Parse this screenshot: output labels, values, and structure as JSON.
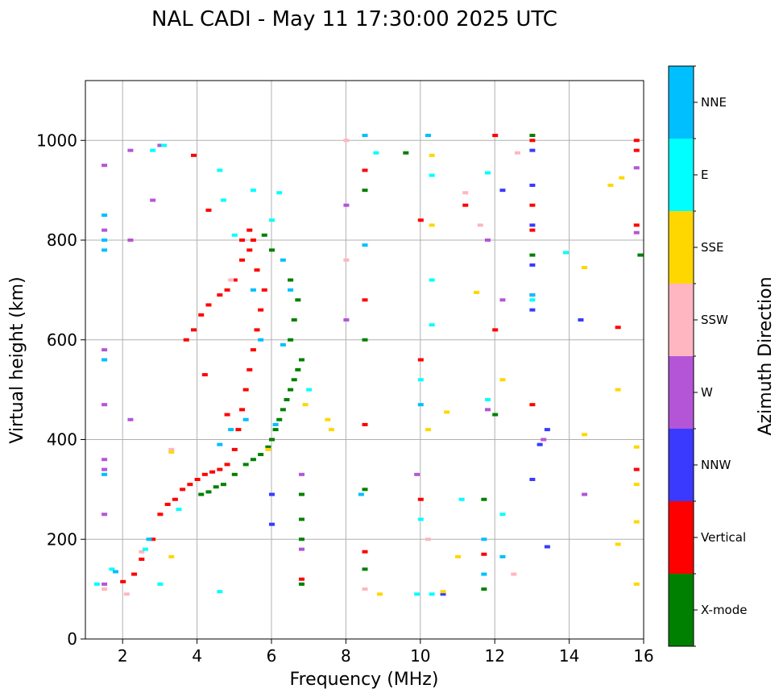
{
  "chart_data": {
    "type": "scatter",
    "title": "NAL CADI - May 11 17:30:00 2025 UTC",
    "xlabel": "Frequency (MHz)",
    "ylabel": "Virtual height (km)",
    "xlim": [
      1.0,
      16.0
    ],
    "ylim": [
      0,
      1120
    ],
    "xticks": [
      2,
      4,
      6,
      8,
      10,
      12,
      14,
      16
    ],
    "yticks": [
      0,
      200,
      400,
      600,
      800,
      1000
    ],
    "grid": true,
    "colorbar": {
      "label": "Azimuth Direction",
      "categories": [
        "X-mode",
        "Vertical",
        "NNW",
        "W",
        "SSW",
        "SSE",
        "E",
        "NNE"
      ],
      "colors": {
        "X-mode": "#008000",
        "Vertical": "#ff0000",
        "NNW": "#3a3aff",
        "W": "#b455d8",
        "SSW": "#ffb6c1",
        "SSE": "#ffd700",
        "E": "#00ffff",
        "NNE": "#00bfff"
      }
    },
    "series": [
      {
        "name": "X-mode",
        "points": [
          [
            4.1,
            290
          ],
          [
            4.3,
            295
          ],
          [
            4.5,
            305
          ],
          [
            4.7,
            310
          ],
          [
            5.0,
            330
          ],
          [
            5.3,
            350
          ],
          [
            5.5,
            360
          ],
          [
            5.7,
            370
          ],
          [
            5.9,
            385
          ],
          [
            6.0,
            400
          ],
          [
            6.1,
            420
          ],
          [
            6.2,
            440
          ],
          [
            6.3,
            460
          ],
          [
            6.4,
            480
          ],
          [
            6.5,
            500
          ],
          [
            6.6,
            520
          ],
          [
            6.7,
            540
          ],
          [
            6.8,
            560
          ],
          [
            6.5,
            600
          ],
          [
            6.6,
            640
          ],
          [
            6.7,
            680
          ],
          [
            6.5,
            720
          ],
          [
            6.0,
            780
          ],
          [
            5.8,
            810
          ],
          [
            6.8,
            290
          ],
          [
            6.8,
            240
          ],
          [
            6.8,
            200
          ],
          [
            6.8,
            110
          ],
          [
            8.5,
            140
          ],
          [
            8.5,
            300
          ],
          [
            8.5,
            600
          ],
          [
            8.5,
            900
          ],
          [
            11.7,
            100
          ],
          [
            11.7,
            280
          ],
          [
            12.0,
            450
          ],
          [
            13.0,
            770
          ],
          [
            13.0,
            1010
          ],
          [
            15.9,
            770
          ],
          [
            9.6,
            975
          ]
        ]
      },
      {
        "name": "Vertical",
        "points": [
          [
            2.0,
            115
          ],
          [
            2.3,
            130
          ],
          [
            2.5,
            160
          ],
          [
            2.8,
            200
          ],
          [
            3.0,
            250
          ],
          [
            3.2,
            270
          ],
          [
            3.4,
            280
          ],
          [
            3.6,
            300
          ],
          [
            3.8,
            310
          ],
          [
            4.0,
            320
          ],
          [
            4.2,
            330
          ],
          [
            4.4,
            335
          ],
          [
            4.6,
            340
          ],
          [
            4.8,
            350
          ],
          [
            5.0,
            380
          ],
          [
            5.1,
            420
          ],
          [
            5.2,
            460
          ],
          [
            5.3,
            500
          ],
          [
            5.4,
            540
          ],
          [
            5.5,
            580
          ],
          [
            5.6,
            620
          ],
          [
            5.7,
            660
          ],
          [
            5.8,
            700
          ],
          [
            5.6,
            740
          ],
          [
            5.4,
            780
          ],
          [
            5.2,
            800
          ],
          [
            3.7,
            600
          ],
          [
            3.9,
            620
          ],
          [
            4.1,
            650
          ],
          [
            4.3,
            670
          ],
          [
            4.6,
            690
          ],
          [
            4.8,
            700
          ],
          [
            5.0,
            720
          ],
          [
            5.2,
            760
          ],
          [
            5.5,
            800
          ],
          [
            4.3,
            860
          ],
          [
            5.4,
            820
          ],
          [
            4.8,
            450
          ],
          [
            4.2,
            530
          ],
          [
            6.8,
            120
          ],
          [
            8.5,
            175
          ],
          [
            8.5,
            430
          ],
          [
            8.5,
            680
          ],
          [
            8.5,
            940
          ],
          [
            10.0,
            280
          ],
          [
            10.0,
            560
          ],
          [
            10.0,
            840
          ],
          [
            11.7,
            170
          ],
          [
            12.0,
            620
          ],
          [
            12.0,
            1010
          ],
          [
            13.0,
            470
          ],
          [
            13.0,
            690
          ],
          [
            13.0,
            820
          ],
          [
            13.0,
            870
          ],
          [
            13.0,
            1000
          ],
          [
            15.3,
            625
          ],
          [
            15.8,
            340
          ],
          [
            15.8,
            830
          ],
          [
            15.8,
            980
          ],
          [
            15.8,
            1000
          ],
          [
            3.9,
            970
          ],
          [
            11.2,
            870
          ]
        ]
      },
      {
        "name": "NNW",
        "points": [
          [
            6.0,
            230
          ],
          [
            6.0,
            290
          ],
          [
            13.0,
            320
          ],
          [
            13.0,
            660
          ],
          [
            13.0,
            750
          ],
          [
            13.0,
            830
          ],
          [
            13.0,
            910
          ],
          [
            13.0,
            980
          ],
          [
            13.4,
            185
          ],
          [
            13.4,
            420
          ],
          [
            13.2,
            390
          ],
          [
            14.3,
            640
          ],
          [
            10.6,
            90
          ],
          [
            12.2,
            900
          ]
        ]
      },
      {
        "name": "W",
        "points": [
          [
            1.5,
            110
          ],
          [
            1.5,
            250
          ],
          [
            1.5,
            340
          ],
          [
            1.5,
            360
          ],
          [
            1.5,
            580
          ],
          [
            1.5,
            820
          ],
          [
            1.5,
            950
          ],
          [
            2.2,
            440
          ],
          [
            2.2,
            800
          ],
          [
            2.2,
            980
          ],
          [
            2.8,
            880
          ],
          [
            3.0,
            990
          ],
          [
            6.8,
            180
          ],
          [
            6.8,
            330
          ],
          [
            8.0,
            640
          ],
          [
            8.0,
            870
          ],
          [
            9.9,
            330
          ],
          [
            11.8,
            460
          ],
          [
            11.8,
            800
          ],
          [
            12.2,
            680
          ],
          [
            13.3,
            400
          ],
          [
            14.4,
            290
          ],
          [
            15.8,
            945
          ],
          [
            15.8,
            815
          ],
          [
            1.5,
            470
          ]
        ]
      },
      {
        "name": "SSW",
        "points": [
          [
            1.5,
            100
          ],
          [
            2.1,
            90
          ],
          [
            2.5,
            175
          ],
          [
            3.3,
            380
          ],
          [
            4.9,
            720
          ],
          [
            8.0,
            760
          ],
          [
            8.5,
            100
          ],
          [
            10.2,
            200
          ],
          [
            11.2,
            895
          ],
          [
            11.6,
            830
          ],
          [
            12.5,
            130
          ],
          [
            12.6,
            975
          ],
          [
            8.0,
            1000
          ]
        ]
      },
      {
        "name": "SSE",
        "points": [
          [
            3.3,
            165
          ],
          [
            3.3,
            375
          ],
          [
            5.9,
            380
          ],
          [
            6.9,
            470
          ],
          [
            7.6,
            420
          ],
          [
            7.5,
            440
          ],
          [
            8.9,
            90
          ],
          [
            10.2,
            420
          ],
          [
            10.7,
            455
          ],
          [
            11.0,
            165
          ],
          [
            11.5,
            695
          ],
          [
            12.2,
            520
          ],
          [
            14.4,
            410
          ],
          [
            14.4,
            745
          ],
          [
            15.3,
            190
          ],
          [
            15.3,
            500
          ],
          [
            15.8,
            110
          ],
          [
            15.8,
            235
          ],
          [
            15.8,
            385
          ],
          [
            15.8,
            310
          ],
          [
            15.1,
            910
          ],
          [
            15.4,
            925
          ],
          [
            10.3,
            970
          ],
          [
            10.3,
            830
          ],
          [
            10.6,
            95
          ]
        ]
      },
      {
        "name": "E",
        "points": [
          [
            1.3,
            110
          ],
          [
            1.7,
            140
          ],
          [
            2.6,
            180
          ],
          [
            3.0,
            110
          ],
          [
            3.5,
            260
          ],
          [
            4.6,
            95
          ],
          [
            4.6,
            940
          ],
          [
            4.7,
            880
          ],
          [
            5.0,
            810
          ],
          [
            5.5,
            900
          ],
          [
            6.0,
            840
          ],
          [
            6.2,
            895
          ],
          [
            7.0,
            500
          ],
          [
            8.8,
            975
          ],
          [
            9.9,
            90
          ],
          [
            10.0,
            240
          ],
          [
            10.0,
            520
          ],
          [
            10.3,
            630
          ],
          [
            10.3,
            720
          ],
          [
            10.3,
            930
          ],
          [
            11.1,
            280
          ],
          [
            11.8,
            935
          ],
          [
            11.8,
            480
          ],
          [
            12.2,
            250
          ],
          [
            13.0,
            680
          ],
          [
            13.9,
            775
          ],
          [
            2.8,
            980
          ],
          [
            3.1,
            990
          ],
          [
            10.3,
            90
          ]
        ]
      },
      {
        "name": "NNE",
        "points": [
          [
            1.5,
            330
          ],
          [
            1.5,
            560
          ],
          [
            1.5,
            800
          ],
          [
            1.5,
            850
          ],
          [
            1.8,
            135
          ],
          [
            2.7,
            200
          ],
          [
            4.6,
            390
          ],
          [
            4.9,
            420
          ],
          [
            5.3,
            440
          ],
          [
            5.7,
            600
          ],
          [
            5.5,
            700
          ],
          [
            6.3,
            760
          ],
          [
            6.5,
            700
          ],
          [
            6.1,
            430
          ],
          [
            6.3,
            590
          ],
          [
            8.4,
            290
          ],
          [
            8.5,
            790
          ],
          [
            8.5,
            1010
          ],
          [
            10.0,
            470
          ],
          [
            10.2,
            1010
          ],
          [
            11.7,
            130
          ],
          [
            11.7,
            200
          ],
          [
            12.2,
            165
          ],
          [
            13.0,
            690
          ],
          [
            1.5,
            780
          ]
        ]
      }
    ]
  }
}
